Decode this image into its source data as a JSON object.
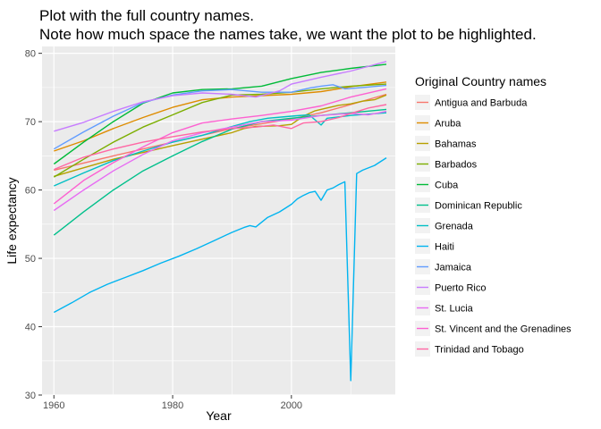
{
  "chart_data": {
    "type": "line",
    "title_lines": [
      "Plot with the full country names.",
      "Note how much space the names take, we want the plot to be highlighted."
    ],
    "xlabel": "Year",
    "ylabel": "Life expectancy",
    "xlim": [
      1958,
      2017.5
    ],
    "ylim": [
      30,
      81
    ],
    "x_ticks": [
      1960,
      1980,
      2000
    ],
    "y_ticks": [
      30,
      40,
      50,
      60,
      70,
      80
    ],
    "grid": true,
    "legend": {
      "title": "Original Country names",
      "position": "right"
    },
    "series": [
      {
        "name": "Antigua and Barbuda",
        "color": "#F8766D",
        "points": [
          [
            1960,
            62.9
          ],
          [
            1970,
            65.0
          ],
          [
            1980,
            67.0
          ],
          [
            1990,
            69.0
          ],
          [
            2000,
            70.4
          ],
          [
            2005,
            71.3
          ],
          [
            2010,
            72.5
          ],
          [
            2016,
            74.0
          ]
        ]
      },
      {
        "name": "Aruba",
        "color": "#DE8C00",
        "points": [
          [
            1960,
            65.7
          ],
          [
            1965,
            67.2
          ],
          [
            1970,
            69.0
          ],
          [
            1975,
            70.6
          ],
          [
            1980,
            72.1
          ],
          [
            1985,
            73.2
          ],
          [
            1990,
            73.6
          ],
          [
            1995,
            73.8
          ],
          [
            2000,
            74.0
          ],
          [
            2005,
            74.4
          ],
          [
            2010,
            75.1
          ],
          [
            2016,
            75.8
          ]
        ]
      },
      {
        "name": "Bahamas",
        "color": "#B79F00",
        "points": [
          [
            1960,
            62.0
          ],
          [
            1970,
            64.5
          ],
          [
            1980,
            66.5
          ],
          [
            1990,
            68.4
          ],
          [
            1992,
            69.0
          ],
          [
            1994,
            69.3
          ],
          [
            1998,
            69.4
          ],
          [
            2000,
            69.6
          ],
          [
            2002,
            70.8
          ],
          [
            2004,
            71.6
          ],
          [
            2006,
            72.0
          ],
          [
            2008,
            72.4
          ],
          [
            2010,
            72.6
          ],
          [
            2012,
            73.0
          ],
          [
            2014,
            73.2
          ],
          [
            2016,
            73.9
          ]
        ]
      },
      {
        "name": "Barbados",
        "color": "#7CAE00",
        "points": [
          [
            1960,
            61.9
          ],
          [
            1965,
            64.5
          ],
          [
            1970,
            67.0
          ],
          [
            1975,
            69.2
          ],
          [
            1980,
            71.0
          ],
          [
            1985,
            72.8
          ],
          [
            1990,
            73.9
          ],
          [
            1995,
            74.0
          ],
          [
            2000,
            74.3
          ],
          [
            2005,
            74.8
          ],
          [
            2010,
            75.2
          ],
          [
            2016,
            75.5
          ]
        ]
      },
      {
        "name": "Cuba",
        "color": "#00BA38",
        "points": [
          [
            1960,
            63.8
          ],
          [
            1965,
            67.0
          ],
          [
            1970,
            70.0
          ],
          [
            1975,
            72.7
          ],
          [
            1980,
            74.2
          ],
          [
            1985,
            74.7
          ],
          [
            1990,
            74.8
          ],
          [
            1995,
            75.2
          ],
          [
            2000,
            76.3
          ],
          [
            2005,
            77.2
          ],
          [
            2010,
            77.8
          ],
          [
            2016,
            78.4
          ]
        ]
      },
      {
        "name": "Dominican Republic",
        "color": "#00C08B",
        "points": [
          [
            1960,
            53.4
          ],
          [
            1965,
            56.8
          ],
          [
            1970,
            60.0
          ],
          [
            1975,
            62.8
          ],
          [
            1980,
            65.0
          ],
          [
            1985,
            67.1
          ],
          [
            1990,
            68.9
          ],
          [
            1995,
            70.0
          ],
          [
            2000,
            70.5
          ],
          [
            2005,
            70.9
          ],
          [
            2010,
            71.3
          ],
          [
            2016,
            71.8
          ]
        ]
      },
      {
        "name": "Grenada",
        "color": "#00BFC4",
        "points": [
          [
            1960,
            60.6
          ],
          [
            1965,
            62.5
          ],
          [
            1970,
            64.3
          ],
          [
            1975,
            65.7
          ],
          [
            1980,
            67.0
          ],
          [
            1985,
            68.0
          ],
          [
            1990,
            69.3
          ],
          [
            1993,
            70.0
          ],
          [
            1996,
            70.5
          ],
          [
            2000,
            70.8
          ],
          [
            2003,
            71.0
          ],
          [
            2005,
            69.5
          ],
          [
            2006,
            70.5
          ],
          [
            2010,
            70.9
          ],
          [
            2016,
            71.3
          ]
        ]
      },
      {
        "name": "Haiti",
        "color": "#00B4F0",
        "points": [
          [
            1960,
            42.1
          ],
          [
            1963,
            43.5
          ],
          [
            1966,
            45.0
          ],
          [
            1969,
            46.2
          ],
          [
            1972,
            47.2
          ],
          [
            1975,
            48.2
          ],
          [
            1978,
            49.3
          ],
          [
            1981,
            50.3
          ],
          [
            1984,
            51.4
          ],
          [
            1987,
            52.6
          ],
          [
            1990,
            53.8
          ],
          [
            1992,
            54.5
          ],
          [
            1993,
            54.8
          ],
          [
            1994,
            54.6
          ],
          [
            1996,
            56.0
          ],
          [
            1998,
            56.8
          ],
          [
            2000,
            57.9
          ],
          [
            2001,
            58.7
          ],
          [
            2002,
            59.2
          ],
          [
            2003,
            59.6
          ],
          [
            2004,
            59.8
          ],
          [
            2005,
            58.5
          ],
          [
            2006,
            60.0
          ],
          [
            2007,
            60.3
          ],
          [
            2008,
            60.8
          ],
          [
            2009,
            61.2
          ],
          [
            2010,
            32.1
          ],
          [
            2011,
            62.4
          ],
          [
            2012,
            62.9
          ],
          [
            2014,
            63.6
          ],
          [
            2016,
            64.7
          ]
        ]
      },
      {
        "name": "Jamaica",
        "color": "#619CFF",
        "points": [
          [
            1960,
            66.0
          ],
          [
            1965,
            68.5
          ],
          [
            1970,
            70.8
          ],
          [
            1975,
            72.8
          ],
          [
            1980,
            73.9
          ],
          [
            1985,
            74.5
          ],
          [
            1990,
            74.7
          ],
          [
            1995,
            74.3
          ],
          [
            2000,
            74.3
          ],
          [
            2003,
            74.9
          ],
          [
            2005,
            75.2
          ],
          [
            2007,
            75.4
          ],
          [
            2009,
            74.8
          ],
          [
            2012,
            75.0
          ],
          [
            2016,
            75.3
          ]
        ]
      },
      {
        "name": "Puerto Rico",
        "color": "#C77CFF",
        "points": [
          [
            1960,
            68.6
          ],
          [
            1965,
            69.9
          ],
          [
            1970,
            71.5
          ],
          [
            1975,
            72.9
          ],
          [
            1980,
            73.8
          ],
          [
            1985,
            74.2
          ],
          [
            1990,
            74.0
          ],
          [
            1994,
            73.6
          ],
          [
            1998,
            74.5
          ],
          [
            2000,
            75.5
          ],
          [
            2005,
            76.5
          ],
          [
            2010,
            77.4
          ],
          [
            2016,
            78.8
          ]
        ]
      },
      {
        "name": "St. Lucia",
        "color": "#E76BF3",
        "points": [
          [
            1960,
            57.0
          ],
          [
            1965,
            60.0
          ],
          [
            1970,
            62.8
          ],
          [
            1975,
            65.2
          ],
          [
            1980,
            67.2
          ],
          [
            1985,
            68.4
          ],
          [
            1990,
            69.2
          ],
          [
            1995,
            70.0
          ],
          [
            2000,
            70.2
          ],
          [
            2005,
            70.9
          ],
          [
            2010,
            71.2
          ],
          [
            2013,
            71.0
          ],
          [
            2016,
            71.5
          ]
        ]
      },
      {
        "name": "St. Vincent and the Grenadines",
        "color": "#FD61D1",
        "points": [
          [
            1960,
            58.0
          ],
          [
            1965,
            61.4
          ],
          [
            1970,
            64.0
          ],
          [
            1975,
            66.3
          ],
          [
            1980,
            68.4
          ],
          [
            1985,
            69.8
          ],
          [
            1990,
            70.4
          ],
          [
            1995,
            70.9
          ],
          [
            2000,
            71.5
          ],
          [
            2005,
            72.3
          ],
          [
            2010,
            73.6
          ],
          [
            2016,
            74.8
          ]
        ]
      },
      {
        "name": "Trinidad and Tobago",
        "color": "#FF67A4",
        "points": [
          [
            1960,
            63.0
          ],
          [
            1965,
            64.8
          ],
          [
            1970,
            66.0
          ],
          [
            1975,
            67.0
          ],
          [
            1980,
            67.8
          ],
          [
            1985,
            68.5
          ],
          [
            1990,
            69.0
          ],
          [
            1994,
            69.2
          ],
          [
            1997,
            69.5
          ],
          [
            2000,
            69.0
          ],
          [
            2002,
            69.8
          ],
          [
            2005,
            70.0
          ],
          [
            2008,
            70.6
          ],
          [
            2010,
            71.2
          ],
          [
            2013,
            72.0
          ],
          [
            2016,
            72.5
          ]
        ]
      }
    ]
  }
}
